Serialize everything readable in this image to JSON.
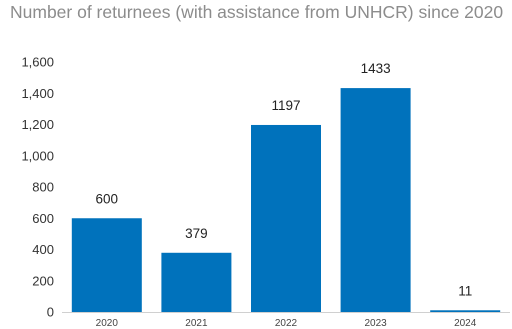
{
  "chart_data": {
    "type": "bar",
    "title": "Number of returnees (with assistance from UNHCR) since 2020",
    "categories": [
      "2020",
      "2021",
      "2022",
      "2023",
      "2024"
    ],
    "values": [
      600,
      379,
      1197,
      1433,
      11
    ],
    "data_labels": [
      "600",
      "379",
      "1197",
      "1433",
      "11"
    ],
    "ylim": [
      0,
      1600
    ],
    "yticks": [
      0,
      200,
      400,
      600,
      800,
      1000,
      1200,
      1400,
      1600
    ],
    "ytick_labels": [
      "0",
      "200",
      "400",
      "600",
      "800",
      "1,000",
      "1,200",
      "1,400",
      "1,600"
    ],
    "xlabel": "",
    "ylabel": "",
    "grid": false,
    "legend": "none",
    "bar_color": "#0072bc"
  }
}
